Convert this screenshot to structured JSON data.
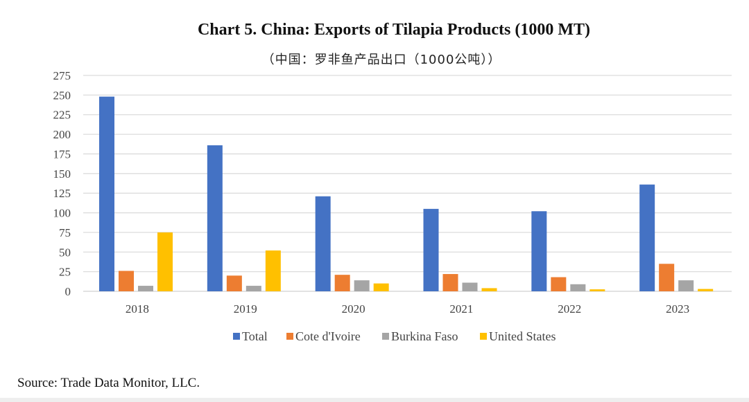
{
  "chart_data": {
    "type": "bar",
    "title": "Chart 5. China:  Exports of Tilapia Products (1000 MT)",
    "subtitle": "（中国：罗非鱼产品出口（1000公吨））",
    "xlabel": "",
    "ylabel": "",
    "ylim": [
      0,
      275
    ],
    "yticks": [
      0,
      25,
      50,
      75,
      100,
      125,
      150,
      175,
      200,
      225,
      250,
      275
    ],
    "grid": true,
    "legend_position": "bottom",
    "categories": [
      "2018",
      "2019",
      "2020",
      "2021",
      "2022",
      "2023"
    ],
    "series": [
      {
        "name": "Total",
        "color": "#4472C4",
        "values": [
          248,
          186,
          121,
          105,
          102,
          136
        ]
      },
      {
        "name": "Cote d'Ivoire",
        "color": "#ED7D31",
        "values": [
          26,
          20,
          21,
          22,
          18,
          35
        ]
      },
      {
        "name": "Burkina Faso",
        "color": "#A5A5A5",
        "values": [
          7,
          7,
          14,
          11,
          9,
          14
        ]
      },
      {
        "name": "United States",
        "color": "#FFC000",
        "values": [
          75,
          52,
          10,
          4,
          2.5,
          3
        ]
      }
    ]
  },
  "source": "Source: Trade Data Monitor, LLC."
}
